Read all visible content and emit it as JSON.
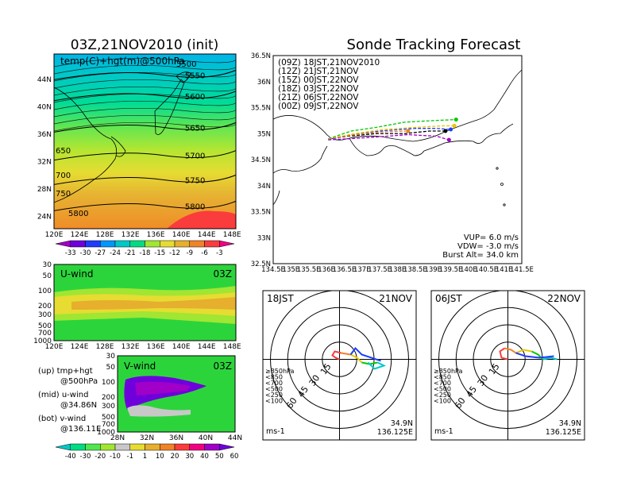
{
  "titles": {
    "left": "03Z,21NOV2010 (init)",
    "right": "Sonde Tracking Forecast"
  },
  "map500": {
    "label": "temp(C)+hgt(m)@500hPa",
    "lat_ticks": [
      "44N",
      "40N",
      "36N",
      "32N",
      "28N",
      "24N"
    ],
    "lon_ticks": [
      "120E",
      "124E",
      "128E",
      "132E",
      "136E",
      "140E",
      "144E",
      "148E"
    ],
    "contours": [
      {
        "label": "5550",
        "y": 0.12
      },
      {
        "label": "5600",
        "y": 0.24
      },
      {
        "label": "5650",
        "y": 0.42
      },
      {
        "label": "5700",
        "y": 0.58
      },
      {
        "label": "5750",
        "y": 0.72
      },
      {
        "label": "5800",
        "y": 0.87
      }
    ],
    "left_labels": [
      "650",
      "700",
      "750",
      "5800"
    ],
    "top_label": "5500"
  },
  "temp_colorbar": {
    "labels": [
      "-33",
      "-30",
      "-27",
      "-24",
      "-21",
      "-18",
      "-15",
      "-12",
      "-9",
      "-6",
      "-3"
    ],
    "colors": [
      "#a000c8",
      "#6e00dc",
      "#1e3cff",
      "#0096ff",
      "#00c8c8",
      "#00dc82",
      "#a0e632",
      "#e6dc32",
      "#e6af2d",
      "#f08228",
      "#fa3c3c",
      "#f00082"
    ]
  },
  "uwind": {
    "title": "U-wind",
    "time": "03Z",
    "p_ticks": [
      "30",
      "50",
      "100",
      "200",
      "300",
      "500",
      "700",
      "1000"
    ],
    "lon_ticks": [
      "120E",
      "124E",
      "128E",
      "132E",
      "136E",
      "140E",
      "144E",
      "148E"
    ]
  },
  "vwind": {
    "title": "V-wind",
    "time": "03Z",
    "p_ticks": [
      "30",
      "50",
      "100",
      "200",
      "300",
      "500",
      "700",
      "1000"
    ],
    "lat_ticks": [
      "28N",
      "32N",
      "36N",
      "40N",
      "44N"
    ]
  },
  "notes": [
    {
      "a": "(up) tmp+hgt",
      "b": "@500hPa"
    },
    {
      "a": "(mid) u-wind",
      "b": "@34.86N"
    },
    {
      "a": "(bot) v-wind",
      "b": "@136.11E"
    }
  ],
  "wind_colorbar": {
    "labels": [
      "-40",
      "-30",
      "-20",
      "-10",
      "-1",
      "1",
      "10",
      "20",
      "30",
      "40",
      "50",
      "60"
    ],
    "colors": [
      "#00c8c8",
      "#00dc82",
      "#50e650",
      "#a0e632",
      "#c8c8c8",
      "#e6dc32",
      "#e6af2d",
      "#f08228",
      "#fa3c3c",
      "#f00082",
      "#a000c8",
      "#6e00dc"
    ]
  },
  "track": {
    "lat_ticks": [
      "36.5N",
      "36N",
      "35.5N",
      "35N",
      "34.5N",
      "34N",
      "33.5N",
      "33N",
      "32.5N"
    ],
    "lon_ticks": [
      "134.5E",
      "135E",
      "135.5E",
      "136E",
      "136.5E",
      "137E",
      "137.5E",
      "138E",
      "138.5E",
      "139E",
      "139.5E",
      "140E",
      "140.5E",
      "141E",
      "141.5E"
    ],
    "legend": [
      {
        "text": "(09Z)  18JST,21NOV2010",
        "color": "#000000"
      },
      {
        "text": "(12Z)  21JST,21NOV",
        "color": "#a000c8"
      },
      {
        "text": "(15Z)  00JST,22NOV",
        "color": "#1e3cff"
      },
      {
        "text": "(18Z)  03JST,22NOV",
        "color": "#00c800"
      },
      {
        "text": "(21Z)  06JST,22NOV",
        "color": "#e6c800"
      },
      {
        "text": "(00Z)  09JST,22NOV",
        "color": "#f08228"
      }
    ],
    "params": [
      "VUP= 6.0 m/s",
      "VDW= -3.0 m/s",
      "Burst Alt= 34.0 km"
    ],
    "tracks": [
      {
        "color": "#000000",
        "pts": [
          [
            136.05,
            34.9
          ],
          [
            136.6,
            34.95
          ],
          [
            137.4,
            35.0
          ],
          [
            138.2,
            35.0
          ],
          [
            138.9,
            35.05
          ],
          [
            139.35,
            35.05
          ]
        ]
      },
      {
        "color": "#a000c8",
        "pts": [
          [
            136.05,
            34.88
          ],
          [
            136.6,
            34.9
          ],
          [
            137.3,
            34.93
          ],
          [
            138.3,
            34.98
          ],
          [
            139.1,
            34.95
          ],
          [
            139.45,
            34.88
          ]
        ]
      },
      {
        "color": "#1e3cff",
        "pts": [
          [
            136.05,
            34.88
          ],
          [
            136.7,
            34.98
          ],
          [
            137.5,
            35.05
          ],
          [
            138.5,
            35.1
          ],
          [
            139.1,
            35.1
          ],
          [
            139.5,
            35.08
          ]
        ]
      },
      {
        "color": "#00c800",
        "pts": [
          [
            136.05,
            34.9
          ],
          [
            136.7,
            35.05
          ],
          [
            137.4,
            35.12
          ],
          [
            138.2,
            35.22
          ],
          [
            139.0,
            35.25
          ],
          [
            139.65,
            35.27
          ]
        ]
      },
      {
        "color": "#e6c800",
        "pts": [
          [
            136.05,
            34.9
          ],
          [
            136.8,
            35.0
          ],
          [
            137.6,
            35.08
          ],
          [
            138.5,
            35.12
          ],
          [
            139.3,
            35.15
          ],
          [
            139.6,
            35.15
          ]
        ]
      },
      {
        "color": "#f08228",
        "pts": [
          [
            136.05,
            34.9
          ],
          [
            136.8,
            34.98
          ],
          [
            137.5,
            35.03
          ],
          [
            138.3,
            35.05
          ]
        ]
      }
    ]
  },
  "hodo_left": {
    "time": "18JST",
    "date": "21NOV",
    "ring_labels": [
      "15",
      "30",
      "45",
      "60"
    ],
    "levels": [
      {
        "label": "≥850hPa",
        "color": "#fa3c3c"
      },
      {
        "label": "<850",
        "color": "#f08228"
      },
      {
        "label": "<700",
        "color": "#e6c800"
      },
      {
        "label": "<500",
        "color": "#00c800"
      },
      {
        "label": "<250",
        "color": "#00c8c8"
      },
      {
        "label": "<100",
        "color": "#1e3cff"
      }
    ],
    "unit": "ms-1",
    "loc_lat": "34.9N",
    "loc_lon": "136.125E"
  },
  "hodo_right": {
    "time": "06JST",
    "date": "22NOV",
    "ring_labels": [
      "15",
      "30",
      "45",
      "60"
    ],
    "levels": [
      {
        "label": "≥850hPa",
        "color": "#fa3c3c"
      },
      {
        "label": "<850",
        "color": "#f08228"
      },
      {
        "label": "<700",
        "color": "#e6c800"
      },
      {
        "label": "<500",
        "color": "#00c800"
      },
      {
        "label": "<250",
        "color": "#00c8c8"
      },
      {
        "label": "<100",
        "color": "#1e3cff"
      }
    ],
    "unit": "ms-1",
    "loc_lat": "34.9N",
    "loc_lon": "136.125E"
  }
}
